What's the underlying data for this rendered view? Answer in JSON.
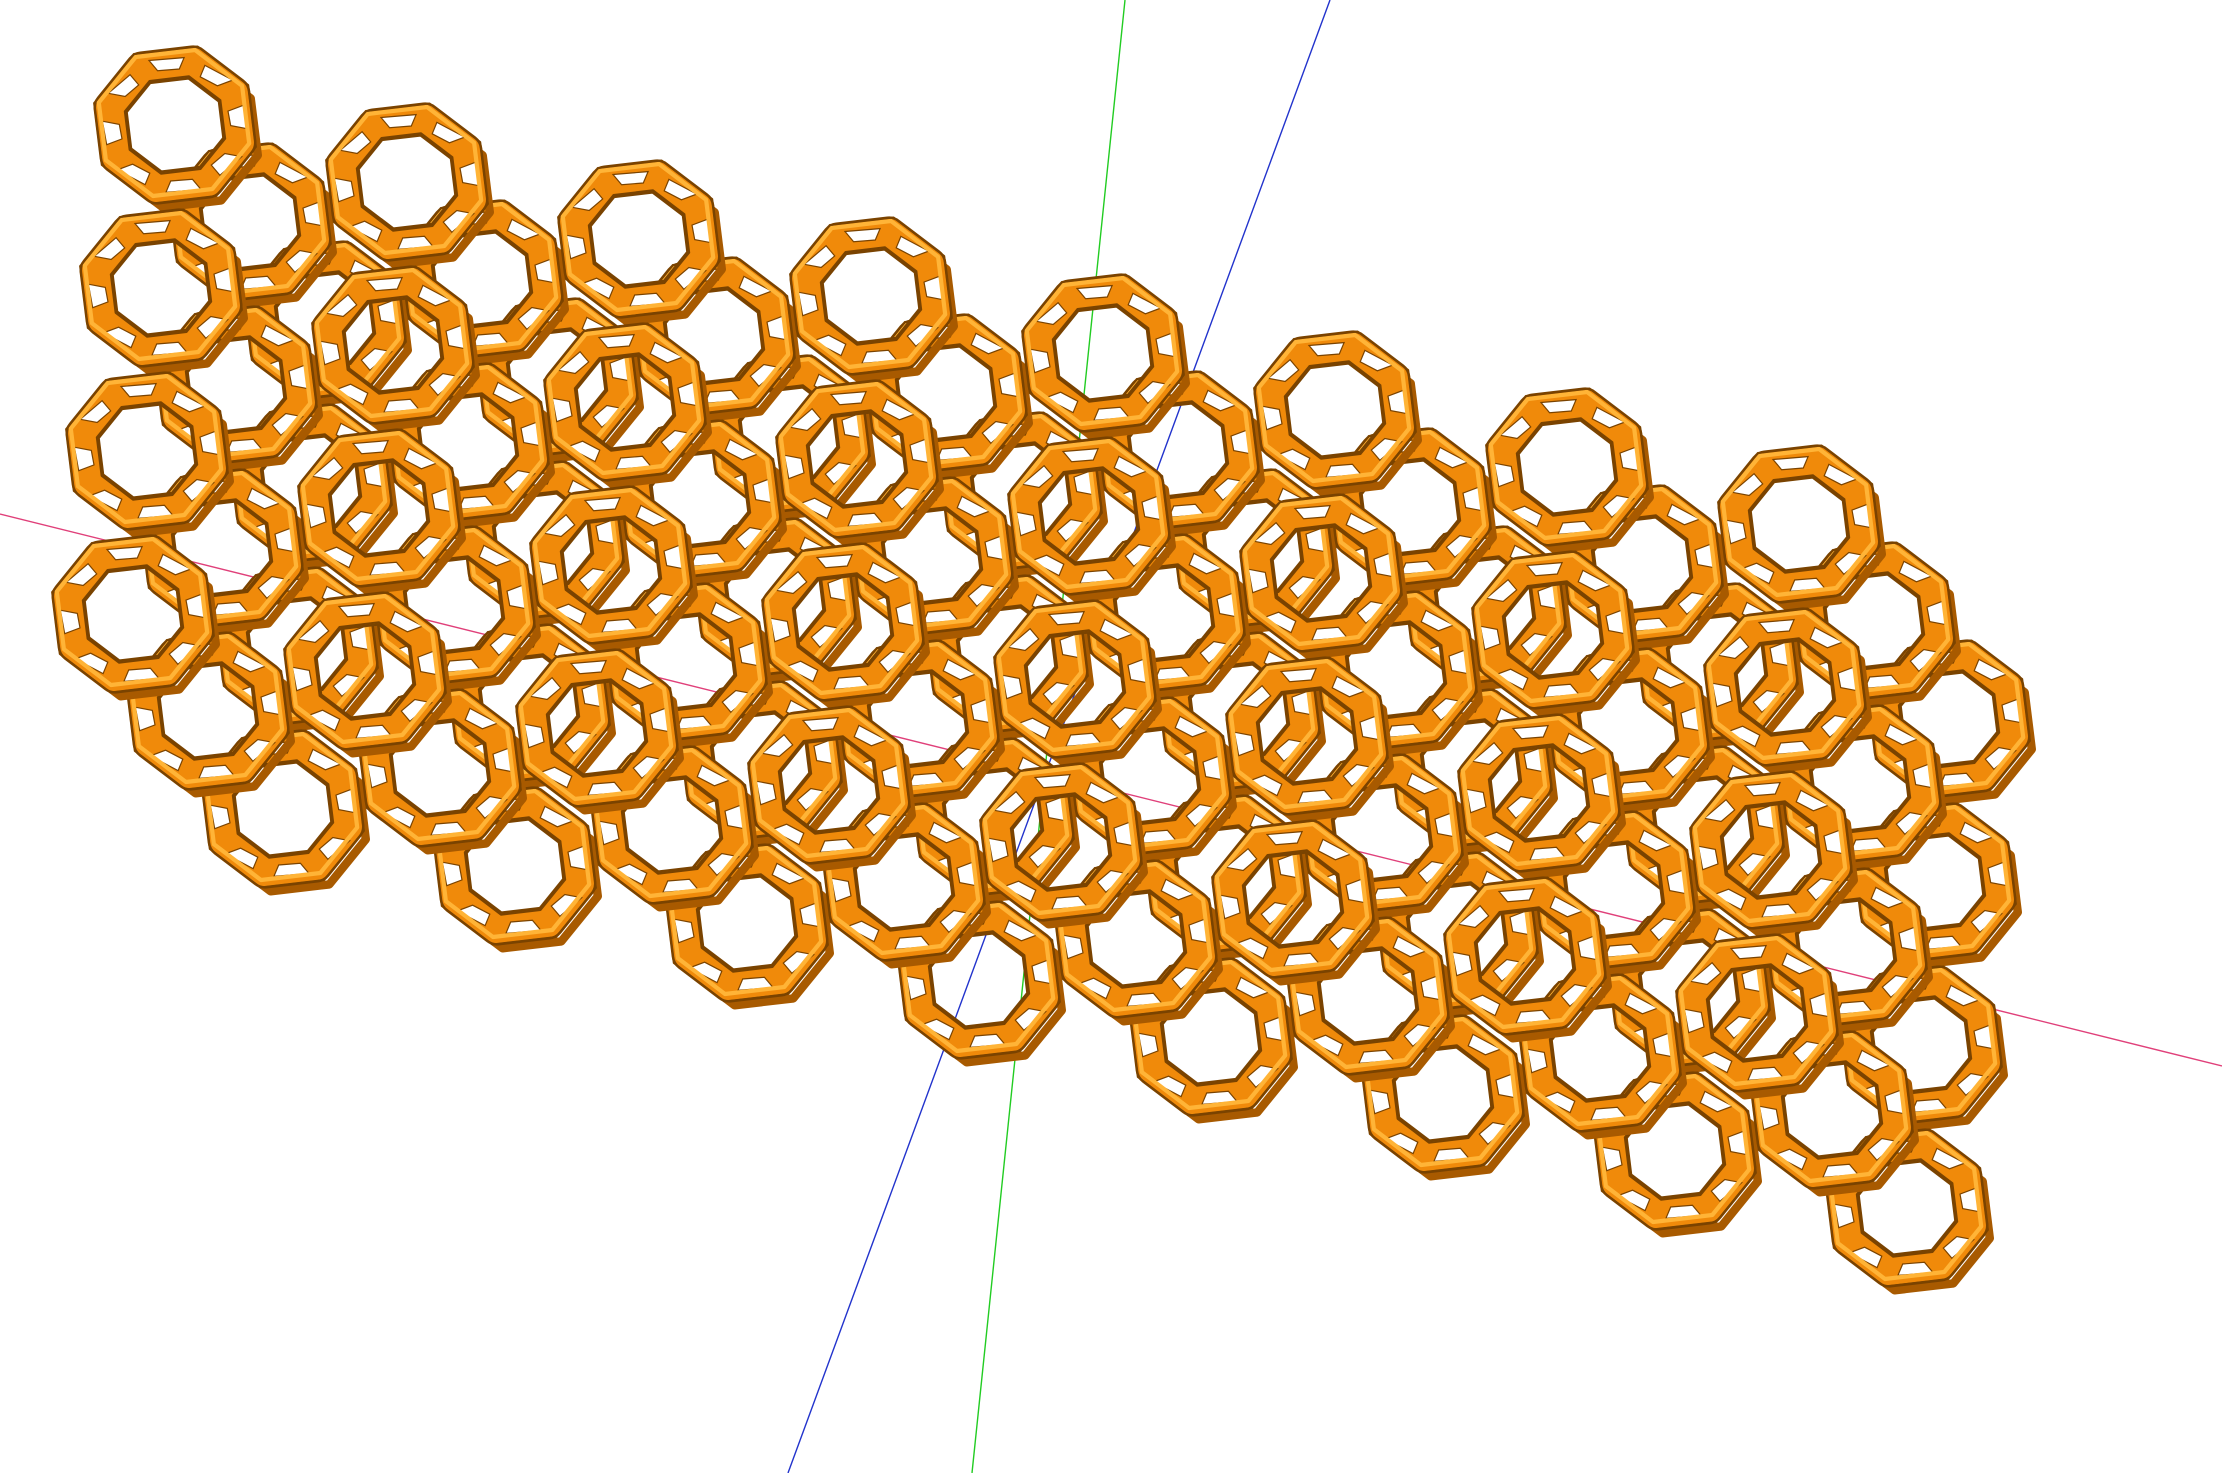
{
  "viewport": {
    "background_color": "#ffffff"
  },
  "axes": {
    "x_axis_color": "#e0407a",
    "y_axis_color": "#22cc22",
    "z_axis_color": "#2233cc"
  },
  "model": {
    "shape": "truncated-octahedron-lattice",
    "strut_fill_color": "#f08a0a",
    "strut_highlight_color": "#ffb437",
    "strut_shadow_color": "#a85a00",
    "edge_color": "#7a4300"
  }
}
